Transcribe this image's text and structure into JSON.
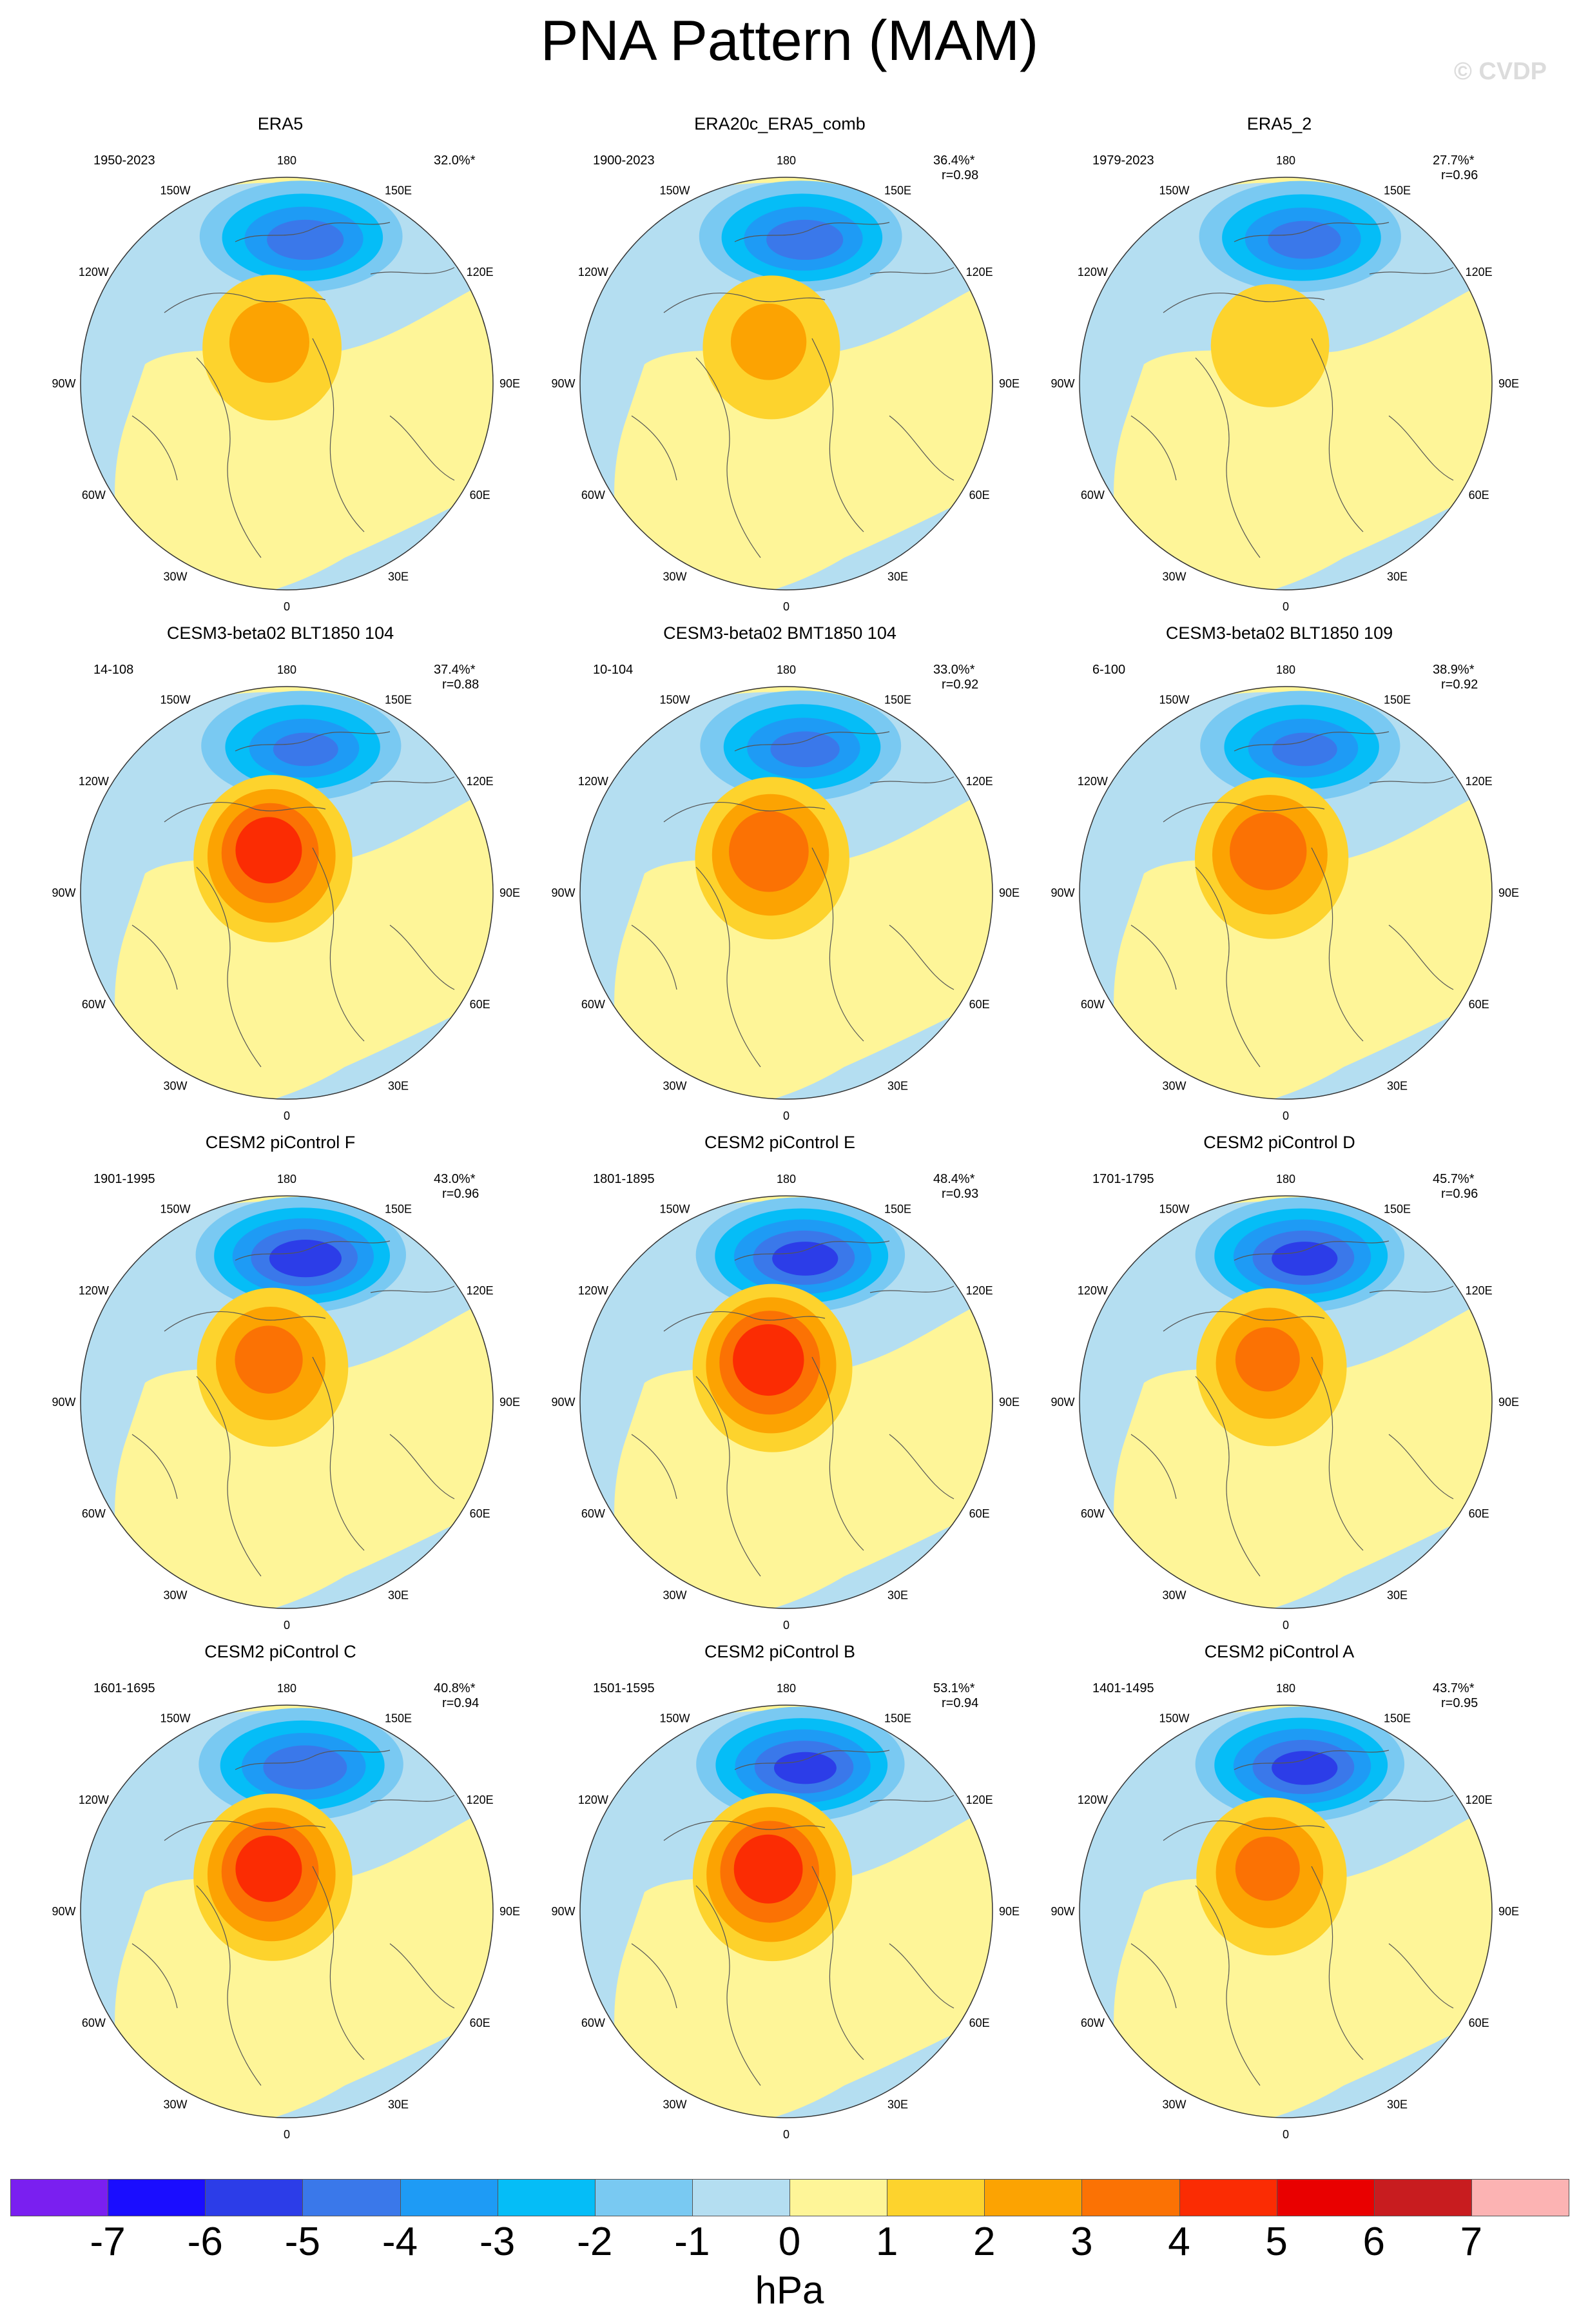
{
  "title": "PNA Pattern (MAM)",
  "watermark": "© CVDP",
  "chart_data": {
    "type": "contour_map_grid",
    "projection": "north-polar-stereographic",
    "units": "hPa",
    "longitude_labels": [
      "180",
      "150E",
      "120E",
      "90E",
      "60E",
      "30E",
      "0",
      "30W",
      "60W",
      "90W",
      "120W",
      "150W"
    ],
    "colorbar": {
      "ticks": [
        "-7",
        "-6",
        "-5",
        "-4",
        "-3",
        "-2",
        "-1",
        "0",
        "1",
        "2",
        "3",
        "4",
        "5",
        "6",
        "7"
      ],
      "colors": [
        "#7a1ff0",
        "#1a0dff",
        "#2c3de8",
        "#3a78ea",
        "#1e9bf5",
        "#05bdf7",
        "#79c9f2",
        "#b4def1",
        "#fef598",
        "#fdd32d",
        "#fca302",
        "#fb7204",
        "#fb2c03",
        "#e90000",
        "#c81c1f",
        "#fcb3b3"
      ]
    },
    "panels": [
      {
        "title": "ERA5",
        "period": "1950-2023",
        "pct": "32.0%*",
        "r": "",
        "neg": -4.6,
        "pos": 2.4
      },
      {
        "title": "ERA20c_ERA5_comb",
        "period": "1900-2023",
        "pct": "36.4%*",
        "r": "r=0.98",
        "neg": -4.6,
        "pos": 2.3
      },
      {
        "title": "ERA5_2",
        "period": "1979-2023",
        "pct": "27.7%*",
        "r": "r=0.96",
        "neg": -4.5,
        "pos": 1.6
      },
      {
        "title": "CESM3-beta02 BLT1850 104",
        "period": "14-108",
        "pct": "37.4%*",
        "r": "r=0.88",
        "neg": -4.3,
        "pos": 4.6
      },
      {
        "title": "CESM3-beta02 BMT1850 104",
        "period": "10-104",
        "pct": "33.0%*",
        "r": "r=0.92",
        "neg": -4.4,
        "pos": 3.8
      },
      {
        "title": "CESM3-beta02 BLT1850 109",
        "period": "6-100",
        "pct": "38.9%*",
        "r": "r=0.92",
        "neg": -4.3,
        "pos": 3.7
      },
      {
        "title": "CESM2 piControl F",
        "period": "1901-1995",
        "pct": "43.0%*",
        "r": "r=0.96",
        "neg": -5.6,
        "pos": 3.4
      },
      {
        "title": "CESM2 piControl E",
        "period": "1801-1895",
        "pct": "48.4%*",
        "r": "r=0.93",
        "neg": -5.4,
        "pos": 4.8
      },
      {
        "title": "CESM2 piControl D",
        "period": "1701-1795",
        "pct": "45.7%*",
        "r": "r=0.96",
        "neg": -5.4,
        "pos": 3.3
      },
      {
        "title": "CESM2 piControl C",
        "period": "1601-1695",
        "pct": "40.8%*",
        "r": "r=0.94",
        "neg": -4.8,
        "pos": 4.6
      },
      {
        "title": "CESM2 piControl B",
        "period": "1501-1595",
        "pct": "53.1%*",
        "r": "r=0.94",
        "neg": -5.3,
        "pos": 4.7
      },
      {
        "title": "CESM2 piControl A",
        "period": "1401-1495",
        "pct": "43.7%*",
        "r": "r=0.95",
        "neg": -5.4,
        "pos": 3.3
      }
    ]
  }
}
